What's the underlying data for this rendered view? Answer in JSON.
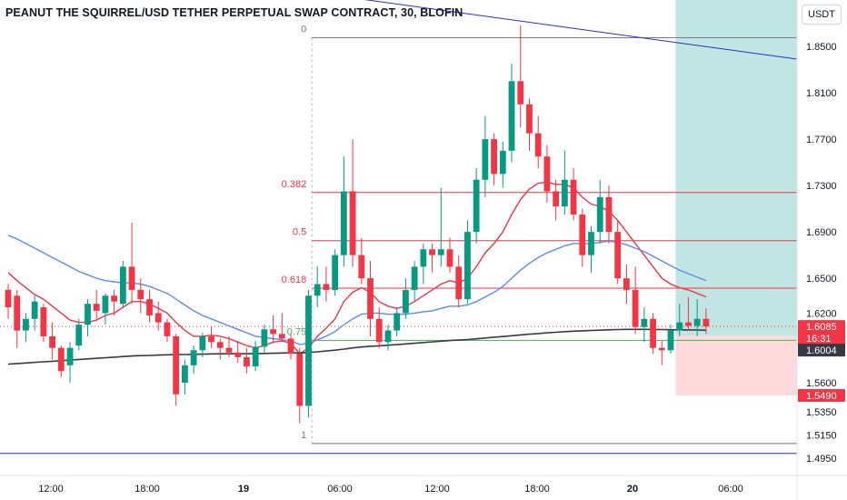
{
  "header": {
    "title": "PEANUT THE SQUIRREL/USD TETHER PERPETUAL SWAP CONTRACT, 30, BLOFIN",
    "currency": "USDT"
  },
  "chart_data": {
    "type": "candlestick",
    "y_axis": {
      "range": [
        1.48,
        1.89
      ],
      "ticks": [
        "1.4950",
        "1.5150",
        "1.5350",
        "1.5600",
        "1.6200",
        "1.6500",
        "1.6900",
        "1.7300",
        "1.7700",
        "1.8100",
        "1.8500"
      ],
      "position": "right"
    },
    "x_axis": {
      "ticks": [
        "12:00",
        "18:00",
        "19",
        "06:00",
        "12:00",
        "18:00",
        "20",
        "06:00"
      ]
    },
    "candles": [
      [
        1.64,
        1.645,
        1.615,
        1.625
      ],
      [
        1.635,
        1.64,
        1.59,
        1.605
      ],
      [
        1.605,
        1.62,
        1.595,
        1.615
      ],
      [
        1.615,
        1.635,
        1.605,
        1.63
      ],
      [
        1.625,
        1.628,
        1.595,
        1.6
      ],
      [
        1.6,
        1.612,
        1.58,
        1.59
      ],
      [
        1.59,
        1.592,
        1.565,
        1.57
      ],
      [
        1.575,
        1.595,
        1.56,
        1.59
      ],
      [
        1.592,
        1.615,
        1.588,
        1.61
      ],
      [
        1.61,
        1.632,
        1.6,
        1.628
      ],
      [
        1.628,
        1.64,
        1.615,
        1.622
      ],
      [
        1.62,
        1.637,
        1.61,
        1.635
      ],
      [
        1.635,
        1.64,
        1.618,
        1.63
      ],
      [
        1.628,
        1.665,
        1.625,
        1.66
      ],
      [
        1.66,
        1.698,
        1.628,
        1.64
      ],
      [
        1.64,
        1.65,
        1.62,
        1.632
      ],
      [
        1.632,
        1.64,
        1.612,
        1.618
      ],
      [
        1.62,
        1.63,
        1.605,
        1.612
      ],
      [
        1.612,
        1.615,
        1.595,
        1.6
      ],
      [
        1.6,
        1.602,
        1.54,
        1.55
      ],
      [
        1.56,
        1.58,
        1.55,
        1.575
      ],
      [
        1.575,
        1.592,
        1.568,
        1.588
      ],
      [
        1.588,
        1.603,
        1.582,
        1.6
      ],
      [
        1.6,
        1.608,
        1.59,
        1.595
      ],
      [
        1.595,
        1.598,
        1.58,
        1.59
      ],
      [
        1.59,
        1.6,
        1.582,
        1.586
      ],
      [
        1.586,
        1.596,
        1.577,
        1.582
      ],
      [
        1.582,
        1.59,
        1.568,
        1.574
      ],
      [
        1.574,
        1.596,
        1.57,
        1.591
      ],
      [
        1.591,
        1.61,
        1.586,
        1.606
      ],
      [
        1.606,
        1.618,
        1.594,
        1.602
      ],
      [
        1.602,
        1.62,
        1.595,
        1.598
      ],
      [
        1.598,
        1.602,
        1.58,
        1.585
      ],
      [
        1.585,
        1.59,
        1.525,
        1.54
      ],
      [
        1.54,
        1.64,
        1.53,
        1.635
      ],
      [
        1.635,
        1.66,
        1.625,
        1.645
      ],
      [
        1.645,
        1.66,
        1.63,
        1.64
      ],
      [
        1.64,
        1.675,
        1.635,
        1.67
      ],
      [
        1.67,
        1.755,
        1.66,
        1.725
      ],
      [
        1.725,
        1.77,
        1.66,
        1.67
      ],
      [
        1.67,
        1.685,
        1.645,
        1.65
      ],
      [
        1.65,
        1.665,
        1.6,
        1.615
      ],
      [
        1.615,
        1.625,
        1.59,
        1.595
      ],
      [
        1.595,
        1.61,
        1.588,
        1.605
      ],
      [
        1.605,
        1.625,
        1.6,
        1.62
      ],
      [
        1.62,
        1.65,
        1.615,
        1.64
      ],
      [
        1.64,
        1.665,
        1.63,
        1.66
      ],
      [
        1.66,
        1.68,
        1.645,
        1.675
      ],
      [
        1.675,
        1.68,
        1.655,
        1.67
      ],
      [
        1.67,
        1.728,
        1.66,
        1.675
      ],
      [
        1.675,
        1.685,
        1.655,
        1.66
      ],
      [
        1.66,
        1.67,
        1.625,
        1.632
      ],
      [
        1.632,
        1.7,
        1.628,
        1.69
      ],
      [
        1.69,
        1.745,
        1.68,
        1.735
      ],
      [
        1.735,
        1.79,
        1.72,
        1.77
      ],
      [
        1.77,
        1.775,
        1.73,
        1.74
      ],
      [
        1.74,
        1.768,
        1.728,
        1.76
      ],
      [
        1.76,
        1.835,
        1.75,
        1.82
      ],
      [
        1.82,
        1.868,
        1.78,
        1.8
      ],
      [
        1.8,
        1.805,
        1.76,
        1.775
      ],
      [
        1.775,
        1.79,
        1.745,
        1.755
      ],
      [
        1.755,
        1.765,
        1.715,
        1.725
      ],
      [
        1.725,
        1.735,
        1.7,
        1.712
      ],
      [
        1.712,
        1.76,
        1.705,
        1.735
      ],
      [
        1.735,
        1.745,
        1.7,
        1.705
      ],
      [
        1.705,
        1.71,
        1.66,
        1.67
      ],
      [
        1.67,
        1.695,
        1.655,
        1.69
      ],
      [
        1.69,
        1.735,
        1.68,
        1.72
      ],
      [
        1.72,
        1.73,
        1.68,
        1.69
      ],
      [
        1.69,
        1.7,
        1.645,
        1.65
      ],
      [
        1.65,
        1.662,
        1.628,
        1.64
      ],
      [
        1.64,
        1.66,
        1.602,
        1.608
      ],
      [
        1.608,
        1.625,
        1.595,
        1.615
      ],
      [
        1.615,
        1.62,
        1.585,
        1.59
      ],
      [
        1.59,
        1.596,
        1.575,
        1.588
      ],
      [
        1.588,
        1.61,
        1.585,
        1.605
      ],
      [
        1.605,
        1.628,
        1.6,
        1.612
      ],
      [
        1.612,
        1.634,
        1.605,
        1.609
      ],
      [
        1.609,
        1.632,
        1.6,
        1.615
      ],
      [
        1.615,
        1.624,
        1.602,
        1.6085
      ]
    ],
    "series": [
      {
        "color": "#f23645",
        "values": [
          1.655,
          1.648,
          1.642,
          1.636,
          1.632,
          1.626,
          1.62,
          1.614,
          1.612,
          1.612,
          1.614,
          1.618,
          1.62,
          1.625,
          1.63,
          1.63,
          1.628,
          1.624,
          1.62,
          1.612,
          1.605,
          1.6,
          1.6,
          1.601,
          1.6,
          1.598,
          1.595,
          1.592,
          1.59,
          1.592,
          1.595,
          1.596,
          1.594,
          1.585,
          1.59,
          1.6,
          1.607,
          1.615,
          1.63,
          1.638,
          1.642,
          1.638,
          1.63,
          1.626,
          1.624,
          1.626,
          1.63,
          1.635,
          1.64,
          1.645,
          1.648,
          1.646,
          1.65,
          1.66,
          1.672,
          1.68,
          1.69,
          1.705,
          1.718,
          1.727,
          1.732,
          1.733,
          1.731,
          1.731,
          1.728,
          1.72,
          1.714,
          1.712,
          1.708,
          1.7,
          1.69,
          1.68,
          1.67,
          1.66,
          1.65,
          1.645,
          1.642,
          1.64,
          1.637,
          1.634
        ]
      },
      {
        "color": "#5b8def",
        "values": [
          1.687,
          1.684,
          1.68,
          1.676,
          1.672,
          1.668,
          1.664,
          1.66,
          1.656,
          1.653,
          1.65,
          1.648,
          1.647,
          1.646,
          1.646,
          1.645,
          1.643,
          1.64,
          1.637,
          1.632,
          1.627,
          1.622,
          1.618,
          1.615,
          1.612,
          1.609,
          1.606,
          1.603,
          1.6,
          1.599,
          1.598,
          1.597,
          1.596,
          1.593,
          1.594,
          1.597,
          1.6,
          1.604,
          1.61,
          1.615,
          1.619,
          1.62,
          1.62,
          1.619,
          1.619,
          1.619,
          1.62,
          1.621,
          1.622,
          1.624,
          1.626,
          1.626,
          1.627,
          1.63,
          1.634,
          1.638,
          1.643,
          1.65,
          1.657,
          1.663,
          1.668,
          1.672,
          1.675,
          1.678,
          1.68,
          1.68,
          1.68,
          1.681,
          1.682,
          1.681,
          1.679,
          1.676,
          1.673,
          1.669,
          1.665,
          1.661,
          1.657,
          1.654,
          1.651,
          1.648
        ]
      },
      {
        "color": "#363a45",
        "values": [
          1.576,
          1.5765,
          1.577,
          1.5775,
          1.578,
          1.5785,
          1.579,
          1.5795,
          1.58,
          1.5805,
          1.581,
          1.5815,
          1.582,
          1.5825,
          1.583,
          1.5833,
          1.5835,
          1.5838,
          1.584,
          1.5842,
          1.5843,
          1.5845,
          1.5846,
          1.5848,
          1.5849,
          1.585,
          1.585,
          1.585,
          1.5851,
          1.5852,
          1.5854,
          1.5856,
          1.5857,
          1.5857,
          1.586,
          1.5866,
          1.5873,
          1.588,
          1.589,
          1.59,
          1.5908,
          1.5914,
          1.5918,
          1.5923,
          1.5928,
          1.5934,
          1.594,
          1.5946,
          1.5952,
          1.5958,
          1.5963,
          1.5967,
          1.5972,
          1.5978,
          1.5985,
          1.5992,
          1.5998,
          1.6005,
          1.6012,
          1.6018,
          1.6024,
          1.603,
          1.6035,
          1.604,
          1.6044,
          1.6047,
          1.605,
          1.6053,
          1.6056,
          1.6058,
          1.606,
          1.606,
          1.606,
          1.6059,
          1.6058,
          1.6057,
          1.6056,
          1.6055,
          1.6054,
          1.6053
        ]
      }
    ],
    "fib_levels": [
      {
        "label": "0",
        "value": 1.8575,
        "color": "#787b86"
      },
      {
        "label": "0.382",
        "value": 1.724,
        "color": "#f23645"
      },
      {
        "label": "0.5",
        "value": 1.6825,
        "color": "#f23645"
      },
      {
        "label": "0.618",
        "value": 1.6415,
        "color": "#f23645"
      },
      {
        "label": "0.75",
        "value": 1.5965,
        "color": "#4caf50"
      },
      {
        "label": "1",
        "value": 1.5075,
        "color": "#787b86"
      }
    ],
    "horizontal_line": {
      "value": 1.499,
      "color": "#2a2ed1"
    },
    "trend_line": {
      "color": "#2a2ed1"
    },
    "position_tool": {
      "entry": 1.6004,
      "target_color": "#b2dfdb",
      "stop_color": "#ffcdd2",
      "stop": 1.549
    },
    "price_labels": [
      {
        "text": "1.6085",
        "bg": "#f23645",
        "fg": "#ffffff",
        "value": 1.6085
      },
      {
        "text": "16:31",
        "bg": "#f23645",
        "fg": "#ffffff",
        "value": 1.605
      },
      {
        "text": "1.6004",
        "bg": "#363a45",
        "fg": "#ffffff",
        "value": 1.6004
      },
      {
        "text": "1.5490",
        "bg": "#f23645",
        "fg": "#ffffff",
        "value": 1.549
      }
    ],
    "last_price": 1.6085,
    "colors": {
      "up": "#089981",
      "down": "#f23645"
    }
  }
}
